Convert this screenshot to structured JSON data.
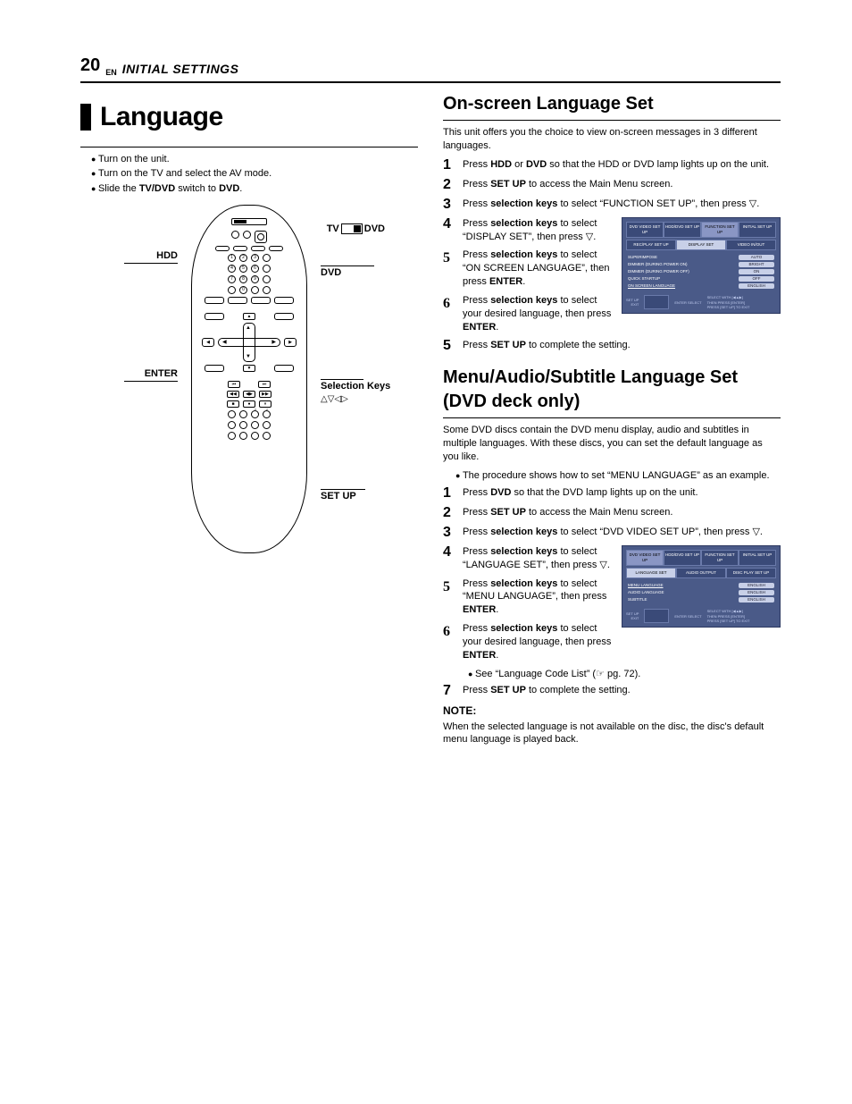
{
  "header": {
    "page": "20",
    "lang": "EN",
    "section": "INITIAL SETTINGS"
  },
  "left": {
    "title": "Language",
    "prep": [
      "Turn on the unit.",
      "Turn on the TV and select the AV mode.",
      "Slide the <b>TV/DVD</b> switch to <b>DVD</b>."
    ],
    "callouts": {
      "tv": "TV",
      "dvd_switch": "DVD",
      "hdd": "HDD",
      "dvd": "DVD",
      "enter": "ENTER",
      "selkeys": "Selection Keys",
      "selsym": "△▽◁▷",
      "setup": "SET UP"
    }
  },
  "right": {
    "sec1": {
      "title": "On-screen Language Set",
      "intro": "This unit offers you the choice to view on-screen messages in 3 different languages.",
      "steps": [
        "Press <b>HDD</b> or <b>DVD</b> so that the HDD or DVD lamp lights up on the unit.",
        "Press <b>SET UP</b> to access the Main Menu screen.",
        "Press <b>selection keys</b> to select “FUNCTION SET UP”, then press ▽.",
        "Press <b>selection keys</b> to select “DISPLAY SET”, then press ▽.",
        "Press <b>selection keys</b> to select “ON SCREEN LANGUAGE”, then press <b>ENTER</b>.",
        "Press <b>selection keys</b> to select your desired language, then press <b>ENTER</b>.",
        "Press <b>SET UP</b> to complete the setting."
      ],
      "osd": {
        "tabs": [
          "DVD VIDEO SET UP",
          "HDD/DVD SET UP",
          "FUNCTION SET UP",
          "INITIAL SET UP"
        ],
        "tab_active": 2,
        "subtabs": [
          "REC/PLAY SET UP",
          "DISPLAY SET",
          "VIDEO IN/OUT"
        ],
        "subtab_active": 1,
        "rows": [
          {
            "l": "SUPERIMPOSE",
            "v": "AUTO"
          },
          {
            "l": "DIMMER (DURING POWER ON)",
            "v": "BRIGHT"
          },
          {
            "l": "DIMMER (DURING POWER OFF)",
            "v": "ON"
          },
          {
            "l": "QUICK STARTUP",
            "v": "OFF"
          },
          {
            "l": "ON SCREEN LANGUAGE",
            "v": "ENGLISH",
            "hl": true
          }
        ],
        "footer_l1": "SET UP",
        "footer_l2": "EXIT",
        "footer_r": "SELECT WITH [◀▲▶]\nTHEN PRESS [ENTER]\nPRESS [SET UP] TO EXIT",
        "footer_mid": "ENTER\nSELECT"
      }
    },
    "sec2": {
      "title": "Menu/Audio/Subtitle Language Set (DVD deck only)",
      "intro": "Some DVD discs contain the DVD menu display, audio and subtitles in multiple languages. With these discs, you can set the default language as you like.",
      "pre_bullet": "The procedure shows how to set “MENU LANGUAGE” as an example.",
      "steps": [
        "Press <b>DVD</b> so that the DVD lamp lights up on the unit.",
        "Press <b>SET UP</b> to access the Main Menu screen.",
        "Press <b>selection keys</b> to select “DVD VIDEO SET UP”, then press ▽.",
        "Press <b>selection keys</b> to select “LANGUAGE SET”, then press  ▽.",
        "Press <b>selection keys</b> to select “MENU LANGUAGE”, then press <b>ENTER</b>.",
        "Press <b>selection keys</b> to select your desired language, then press <b>ENTER</b>.",
        "Press <b>SET UP</b> to complete the setting."
      ],
      "step6_sub": "See “Language Code List” (☞ pg. 72).",
      "osd": {
        "tabs": [
          "DVD VIDEO SET UP",
          "HDD/DVD SET UP",
          "FUNCTION SET UP",
          "INITIAL SET UP"
        ],
        "tab_active": 0,
        "subtabs": [
          "LANGUAGE SET",
          "AUDIO OUTPUT",
          "DISC PLAY SET UP"
        ],
        "subtab_active": 0,
        "rows": [
          {
            "l": "MENU LANGUAGE",
            "v": "ENGLISH",
            "hl": true
          },
          {
            "l": "AUDIO LANGUAGE",
            "v": "ENGLISH"
          },
          {
            "l": "SUBTITLE",
            "v": "ENGLISH"
          }
        ],
        "footer_l1": "SET UP",
        "footer_l2": "EXIT",
        "footer_r": "SELECT WITH [◀▲▶]\nTHEN PRESS [ENTER]\nPRESS [SET UP] TO EXIT",
        "footer_mid": "ENTER\nSELECT"
      },
      "note_head": "NOTE:",
      "note": "When the selected language is not available on the disc, the disc's default menu language is played back."
    }
  }
}
